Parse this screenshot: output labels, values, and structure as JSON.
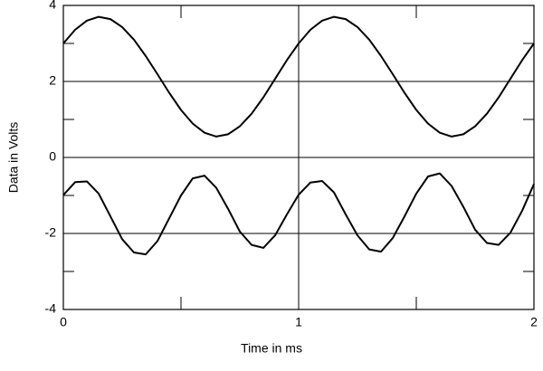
{
  "chart_data": {
    "type": "line",
    "x_label": "Time in ms",
    "y_label": "Data in Volts",
    "x": [
      0,
      0.05,
      0.1,
      0.15,
      0.2,
      0.25,
      0.3,
      0.35,
      0.4,
      0.45,
      0.5,
      0.55,
      0.6,
      0.65,
      0.7,
      0.75,
      0.8,
      0.85,
      0.9,
      0.95,
      1,
      1.05,
      1.1,
      1.15,
      1.2,
      1.25,
      1.3,
      1.35,
      1.4,
      1.45,
      1.5,
      1.55,
      1.6,
      1.65,
      1.7,
      1.75,
      1.8,
      1.85,
      1.9,
      1.95,
      2
    ],
    "series": [
      {
        "color": "#000000",
        "values": [
          3.0,
          3.36,
          3.6,
          3.7,
          3.64,
          3.43,
          3.1,
          2.67,
          2.19,
          1.7,
          1.25,
          0.89,
          0.65,
          0.55,
          0.61,
          0.82,
          1.15,
          1.58,
          2.07,
          2.56,
          3.0,
          3.36,
          3.6,
          3.7,
          3.64,
          3.43,
          3.1,
          2.67,
          2.19,
          1.7,
          1.25,
          0.89,
          0.65,
          0.55,
          0.61,
          0.82,
          1.15,
          1.58,
          2.07,
          2.56,
          3.0
        ]
      },
      {
        "color": "#000000",
        "values": [
          -0.99,
          -0.65,
          -0.63,
          -0.95,
          -1.55,
          -2.15,
          -2.5,
          -2.55,
          -2.2,
          -1.6,
          -1.0,
          -0.55,
          -0.48,
          -0.8,
          -1.35,
          -1.95,
          -2.3,
          -2.38,
          -2.05,
          -1.5,
          -0.98,
          -0.66,
          -0.62,
          -0.92,
          -1.5,
          -2.05,
          -2.42,
          -2.48,
          -2.12,
          -1.55,
          -0.95,
          -0.5,
          -0.42,
          -0.75,
          -1.3,
          -1.9,
          -2.25,
          -2.3,
          -1.98,
          -1.4,
          -0.7
        ]
      }
    ],
    "xlim": [
      0,
      2
    ],
    "xticks": [
      0,
      1,
      2
    ],
    "xminor": [
      0.5,
      1.5
    ],
    "ylim": [
      -4,
      4
    ],
    "yticks": [
      -4,
      -2,
      0,
      2,
      4
    ],
    "yminor": [
      -3,
      -1,
      1,
      3
    ],
    "grid": true
  }
}
